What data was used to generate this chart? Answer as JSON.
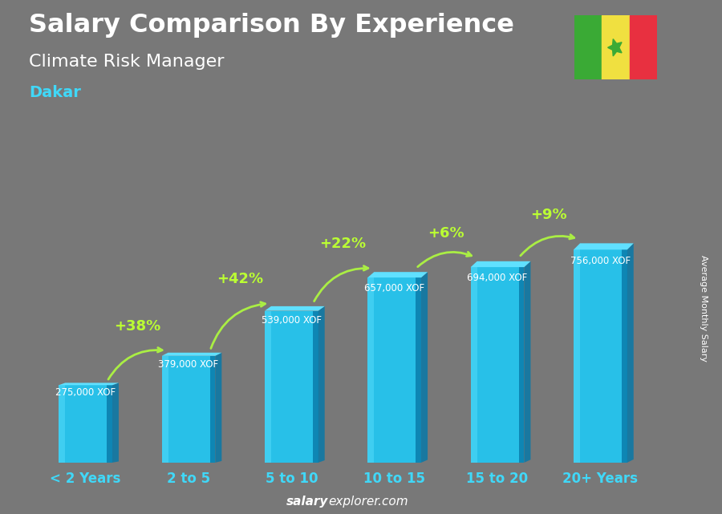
{
  "title_line1": "Salary Comparison By Experience",
  "title_line2": "Climate Risk Manager",
  "subtitle": "Dakar",
  "categories": [
    "< 2 Years",
    "2 to 5",
    "5 to 10",
    "10 to 15",
    "15 to 20",
    "20+ Years"
  ],
  "values": [
    275000,
    379000,
    539000,
    657000,
    694000,
    756000
  ],
  "value_labels": [
    "275,000 XOF",
    "379,000 XOF",
    "539,000 XOF",
    "657,000 XOF",
    "694,000 XOF",
    "756,000 XOF"
  ],
  "pct_labels": [
    "+38%",
    "+42%",
    "+22%",
    "+6%",
    "+9%"
  ],
  "bar_color_mid": "#28c0e8",
  "bar_color_light": "#50d8f8",
  "bar_color_dark": "#0878a8",
  "bar_color_top": "#60e0ff",
  "background_color": "#787878",
  "ylabel": "Average Monthly Salary",
  "footer_bold": "salary",
  "footer_normal": "explorer.com",
  "arrow_color": "#aaee44",
  "pct_color": "#bbff33",
  "value_label_color": "#dddddd",
  "cat_label_color": "#40d8f8",
  "flag_green": "#3aaa35",
  "flag_yellow": "#f0e040",
  "flag_red": "#e83040",
  "flag_star": "#3aaa35",
  "title_color": "#ffffff",
  "subtitle_color": "#ffffff",
  "dakar_color": "#40d8f8"
}
